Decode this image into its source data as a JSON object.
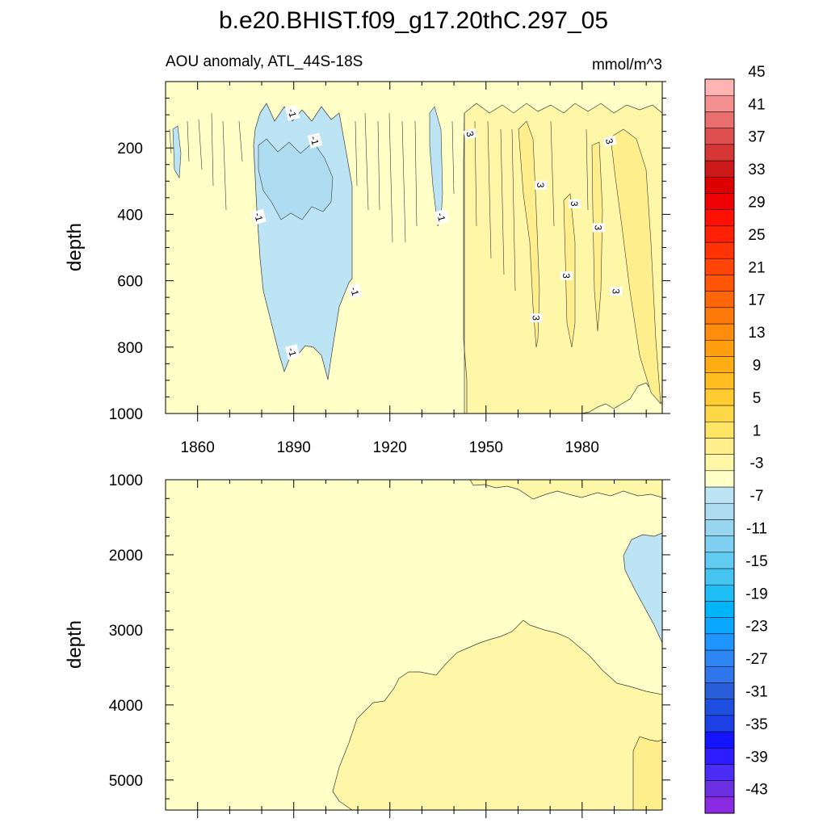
{
  "chart_data": {
    "type": "heatmap",
    "title": "b.e20.BHIST.f09_g17.20thC.297_05",
    "subtitle_left": "AOU anomaly, ATL_44S-18S",
    "units": "mmol/m^3",
    "colorbar": {
      "levels": [
        -45,
        -43,
        -41,
        -39,
        -37,
        -35,
        -33,
        -31,
        -29,
        -27,
        -25,
        -23,
        -21,
        -19,
        -17,
        -15,
        -13,
        -11,
        -9,
        -7,
        -5,
        -3,
        -1,
        1,
        3,
        5,
        7,
        9,
        11,
        13,
        15,
        17,
        19,
        21,
        23,
        25,
        27,
        29,
        31,
        33,
        35,
        37,
        39,
        41,
        43,
        45
      ],
      "labels": [
        "-43",
        "-39",
        "-35",
        "-31",
        "-27",
        "-23",
        "-19",
        "-15",
        "-11",
        "-7",
        "-3",
        "1",
        "5",
        "9",
        "13",
        "17",
        "21",
        "25",
        "29",
        "33",
        "37",
        "41",
        "45"
      ],
      "colors": [
        "#8a2be2",
        "#6a2fe0",
        "#4b2cf5",
        "#2d1cff",
        "#1414ff",
        "#1c3fe6",
        "#1f4fe0",
        "#2a5ed8",
        "#2f75ec",
        "#2e86f5",
        "#1f95ff",
        "#0aa6ff",
        "#00b5fa",
        "#1fbef5",
        "#45c6f2",
        "#62cbf2",
        "#7ecff0",
        "#98d6ef",
        "#aedcf0",
        "#bde4f4",
        "#ffffc8",
        "#fff7a8",
        "#ffef8c",
        "#ffe566",
        "#ffd84a",
        "#ffcb32",
        "#ffbd1f",
        "#ffad12",
        "#ff9f0f",
        "#ff8c0c",
        "#ff780a",
        "#ff6608",
        "#ff5507",
        "#ff4407",
        "#ff3306",
        "#ff2106",
        "#ff1005",
        "#ee0004",
        "#dc0000",
        "#cc1a1a",
        "#d63636",
        "#e04f4f",
        "#ea6e6e",
        "#f38f8f",
        "#ffb4b4"
      ]
    },
    "panels": [
      {
        "name": "upper",
        "ylabel": "depth",
        "xlim": [
          1850,
          2005
        ],
        "ylim": [
          1000,
          0
        ],
        "x_ticks": [
          1860,
          1890,
          1920,
          1950,
          1980
        ],
        "y_ticks": [
          200,
          400,
          600,
          800,
          1000
        ],
        "contour_labels": [
          {
            "year": 1889.5,
            "depth": 95,
            "text": "-1"
          },
          {
            "year": 1896.5,
            "depth": 178,
            "text": "-1"
          },
          {
            "year": 1879,
            "depth": 408,
            "text": "-1"
          },
          {
            "year": 1936,
            "depth": 408,
            "text": "-1"
          },
          {
            "year": 1909,
            "depth": 632,
            "text": "-1"
          },
          {
            "year": 1889.5,
            "depth": 815,
            "text": "-1"
          },
          {
            "year": 1945,
            "depth": 158,
            "text": "3"
          },
          {
            "year": 1967,
            "depth": 312,
            "text": "3"
          },
          {
            "year": 1977.5,
            "depth": 368,
            "text": "3"
          },
          {
            "year": 1988.5,
            "depth": 180,
            "text": "3"
          },
          {
            "year": 1985,
            "depth": 440,
            "text": "3"
          },
          {
            "year": 1975,
            "depth": 585,
            "text": "3"
          },
          {
            "year": 1990.5,
            "depth": 632,
            "text": "3"
          },
          {
            "year": 1965.5,
            "depth": 712,
            "text": "3"
          }
        ]
      },
      {
        "name": "lower",
        "ylabel": "depth",
        "xlim": [
          1850,
          2005
        ],
        "ylim": [
          5400,
          1000
        ],
        "x_ticks": [],
        "y_ticks": [
          1000,
          2000,
          3000,
          4000,
          5000
        ]
      }
    ]
  }
}
